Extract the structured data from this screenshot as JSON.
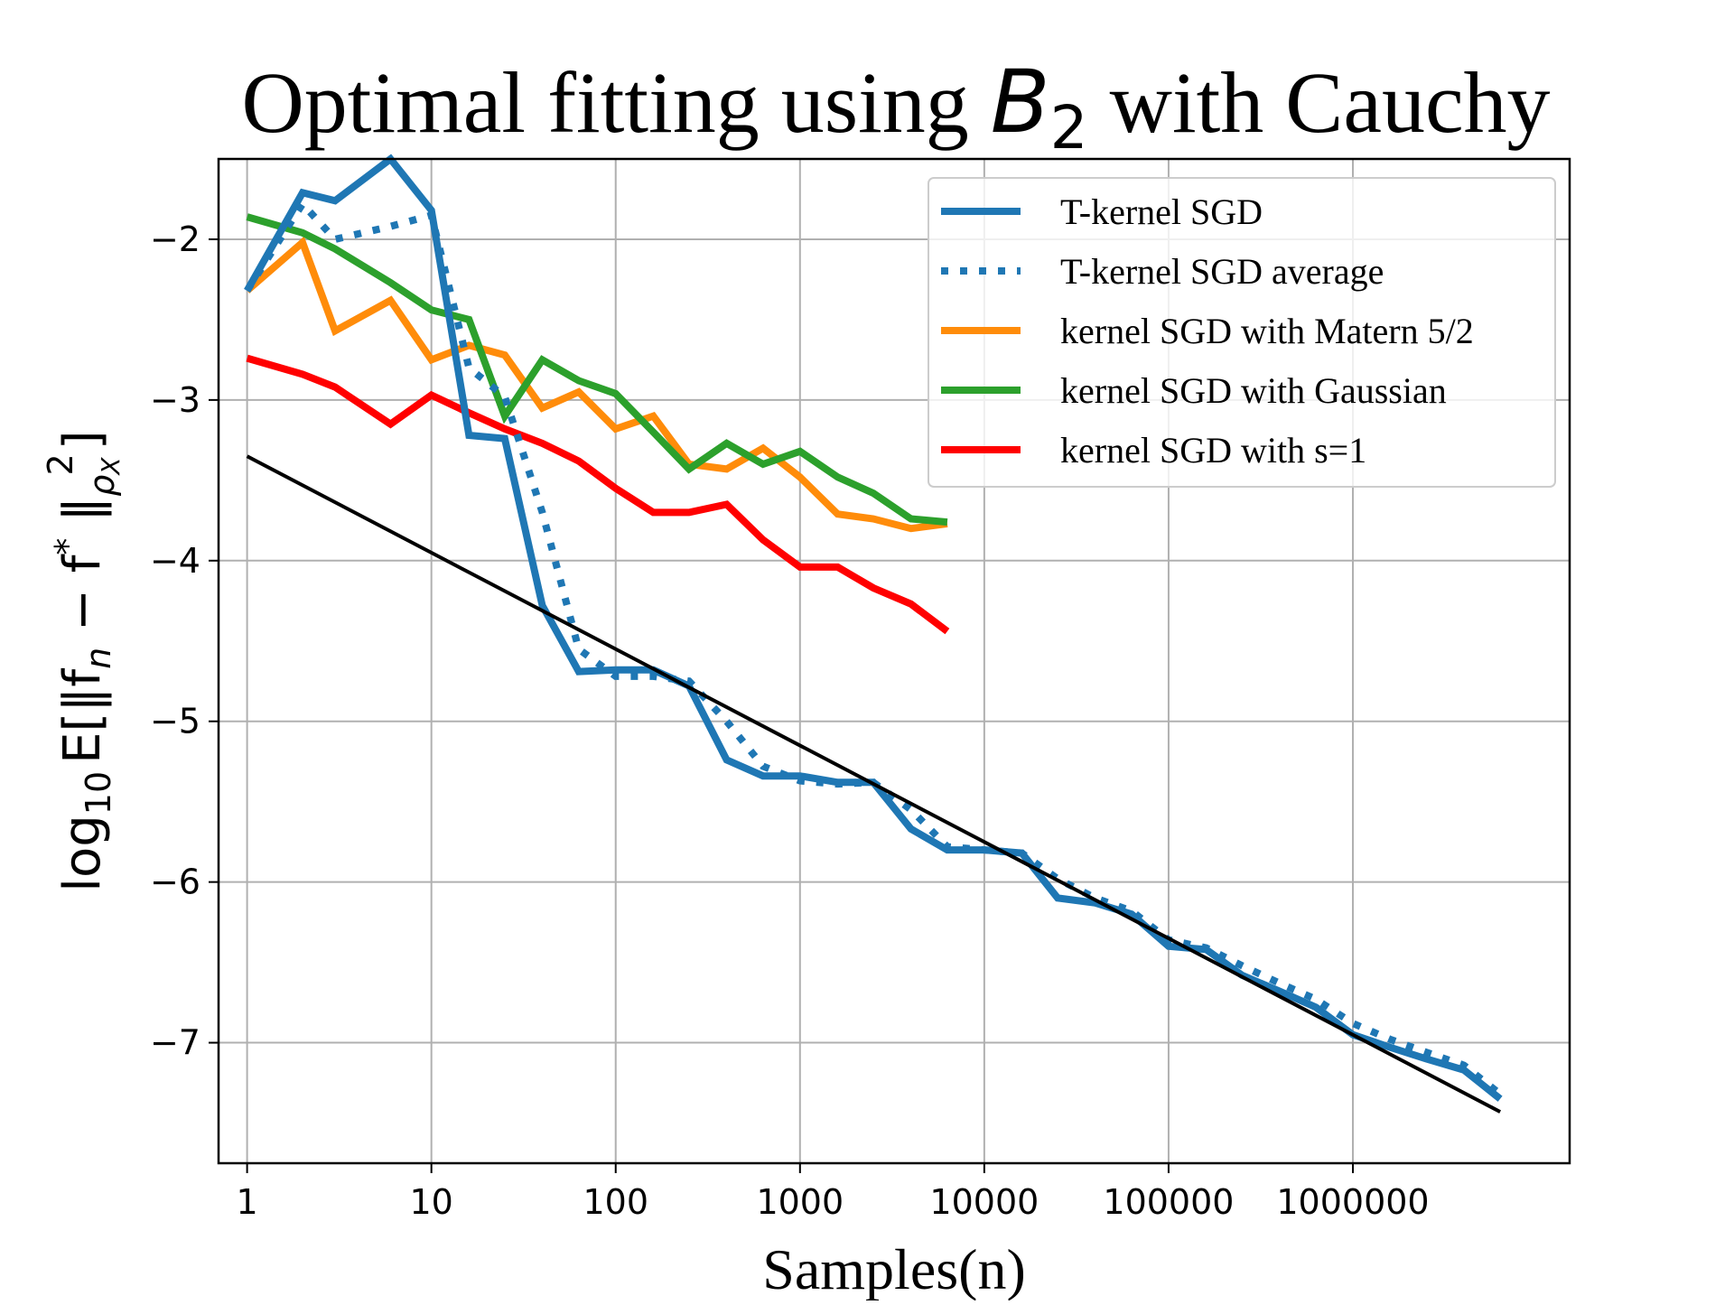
{
  "chart_data": {
    "type": "line",
    "title": {
      "prefix": "Optimal fitting using ",
      "math_symbol": "B",
      "math_subscript": "2",
      "suffix": " with Cauchy"
    },
    "xlabel": "Samples(n)",
    "ylabel": {
      "log": "log",
      "log_subscript": "10",
      "expectation": "E",
      "body": "[‖f",
      "n_subscript": "n",
      "minus": " − f",
      "star": "*",
      "close": " ‖",
      "rho_subscript": "ρ",
      "x_subscript": "X",
      "square": "2",
      "end": "]"
    },
    "x_scale": "log10",
    "xlim": [
      0.7,
      15000000
    ],
    "ylim": [
      -7.75,
      -1.5
    ],
    "x_ticks": [
      {
        "value": 1,
        "label": "1"
      },
      {
        "value": 10,
        "label": "10"
      },
      {
        "value": 100,
        "label": "100"
      },
      {
        "value": 1000,
        "label": "1000"
      },
      {
        "value": 10000,
        "label": "10000"
      },
      {
        "value": 100000,
        "label": "100000"
      },
      {
        "value": 1000000,
        "label": "1000000"
      }
    ],
    "y_ticks": [
      {
        "value": -2,
        "label": "−2"
      },
      {
        "value": -3,
        "label": "−3"
      },
      {
        "value": -4,
        "label": "−4"
      },
      {
        "value": -5,
        "label": "−5"
      },
      {
        "value": -6,
        "label": "−6"
      },
      {
        "value": -7,
        "label": "−7"
      }
    ],
    "grid": true,
    "legend_position": "top-right",
    "series": [
      {
        "name": "T-kernel SGD",
        "color": "#1f77b4",
        "style": "solid",
        "x": [
          1,
          2,
          3,
          6,
          10,
          16,
          25,
          40,
          63,
          100,
          160,
          250,
          400,
          630,
          1000,
          1600,
          2500,
          4000,
          6300,
          10000,
          16000,
          25000,
          40000,
          63000,
          100000,
          160000,
          250000,
          400000,
          630000,
          1000000,
          1600000,
          2500000,
          4000000,
          6300000
        ],
        "y": [
          -2.32,
          -1.71,
          -1.76,
          -1.5,
          -1.82,
          -3.22,
          -3.24,
          -4.28,
          -4.69,
          -4.68,
          -4.68,
          -4.78,
          -5.24,
          -5.34,
          -5.34,
          -5.38,
          -5.38,
          -5.67,
          -5.8,
          -5.8,
          -5.82,
          -6.1,
          -6.13,
          -6.2,
          -6.4,
          -6.42,
          -6.58,
          -6.68,
          -6.78,
          -6.95,
          -7.03,
          -7.1,
          -7.17,
          -7.35
        ]
      },
      {
        "name": "T-kernel SGD average",
        "color": "#1f77b4",
        "style": "dotted",
        "x": [
          1,
          2,
          3,
          6,
          10,
          16,
          25,
          40,
          63,
          100,
          160,
          250,
          400,
          630,
          1000,
          1600,
          2500,
          4000,
          6300,
          10000,
          16000,
          25000,
          40000,
          63000,
          100000,
          160000,
          250000,
          400000,
          630000,
          1000000,
          1600000,
          2500000,
          4000000,
          6300000
        ],
        "y": [
          -2.32,
          -1.78,
          -2.0,
          -1.92,
          -1.85,
          -2.8,
          -2.98,
          -3.7,
          -4.55,
          -4.72,
          -4.72,
          -4.75,
          -5.0,
          -5.28,
          -5.37,
          -5.39,
          -5.38,
          -5.55,
          -5.78,
          -5.8,
          -5.82,
          -5.98,
          -6.1,
          -6.18,
          -6.36,
          -6.41,
          -6.52,
          -6.63,
          -6.73,
          -6.88,
          -6.98,
          -7.06,
          -7.14,
          -7.32
        ]
      },
      {
        "name": "kernel SGD with Matern 5/2",
        "color": "#ff8c0a",
        "style": "solid",
        "x": [
          1,
          2,
          3,
          6,
          10,
          16,
          25,
          40,
          63,
          100,
          160,
          250,
          400,
          630,
          1000,
          1600,
          2500,
          4000,
          6300
        ],
        "y": [
          -2.32,
          -2.02,
          -2.57,
          -2.38,
          -2.75,
          -2.66,
          -2.72,
          -3.05,
          -2.95,
          -3.18,
          -3.1,
          -3.4,
          -3.43,
          -3.3,
          -3.48,
          -3.71,
          -3.74,
          -3.8,
          -3.77
        ]
      },
      {
        "name": "kernel SGD with Gaussian",
        "color": "#2ca02c",
        "style": "solid",
        "x": [
          1,
          2,
          3,
          6,
          10,
          16,
          25,
          40,
          63,
          100,
          160,
          250,
          400,
          630,
          1000,
          1600,
          2500,
          4000,
          6300
        ],
        "y": [
          -1.86,
          -1.96,
          -2.06,
          -2.27,
          -2.44,
          -2.5,
          -3.1,
          -2.75,
          -2.88,
          -2.96,
          -3.2,
          -3.43,
          -3.27,
          -3.4,
          -3.32,
          -3.48,
          -3.58,
          -3.74,
          -3.76
        ]
      },
      {
        "name": "kernel SGD with s=1",
        "color": "#ff0000",
        "style": "solid",
        "x": [
          1,
          2,
          3,
          6,
          10,
          16,
          25,
          40,
          63,
          100,
          160,
          250,
          400,
          630,
          1000,
          1600,
          2500,
          4000,
          6300
        ],
        "y": [
          -2.74,
          -2.84,
          -2.92,
          -3.15,
          -2.97,
          -3.08,
          -3.18,
          -3.27,
          -3.38,
          -3.55,
          -3.7,
          -3.7,
          -3.65,
          -3.87,
          -4.04,
          -4.04,
          -4.17,
          -4.27,
          -4.44
        ]
      },
      {
        "name": "",
        "color": "#000000",
        "style": "solid",
        "x": [
          1,
          6300000
        ],
        "y": [
          -3.35,
          -7.43
        ]
      }
    ]
  }
}
